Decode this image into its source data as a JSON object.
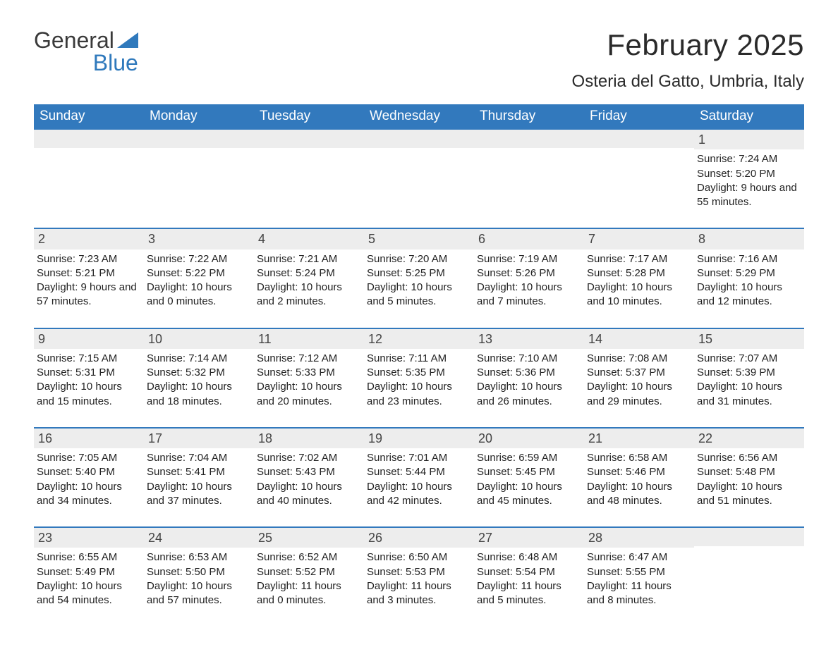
{
  "logo": {
    "word1": "General",
    "word2": "Blue"
  },
  "title": "February 2025",
  "location": "Osteria del Gatto, Umbria, Italy",
  "colors": {
    "header_bg": "#3279bd",
    "header_text": "#ffffff",
    "daynum_bg": "#ededed",
    "accent": "#2f79bc",
    "body_text": "#222222",
    "page_bg": "#ffffff"
  },
  "days_of_week": [
    "Sunday",
    "Monday",
    "Tuesday",
    "Wednesday",
    "Thursday",
    "Friday",
    "Saturday"
  ],
  "labels": {
    "sunrise": "Sunrise:",
    "sunset": "Sunset:",
    "daylight": "Daylight:"
  },
  "weeks": [
    [
      null,
      null,
      null,
      null,
      null,
      null,
      {
        "n": "1",
        "sunrise": "7:24 AM",
        "sunset": "5:20 PM",
        "daylight": "9 hours and 55 minutes."
      }
    ],
    [
      {
        "n": "2",
        "sunrise": "7:23 AM",
        "sunset": "5:21 PM",
        "daylight": "9 hours and 57 minutes."
      },
      {
        "n": "3",
        "sunrise": "7:22 AM",
        "sunset": "5:22 PM",
        "daylight": "10 hours and 0 minutes."
      },
      {
        "n": "4",
        "sunrise": "7:21 AM",
        "sunset": "5:24 PM",
        "daylight": "10 hours and 2 minutes."
      },
      {
        "n": "5",
        "sunrise": "7:20 AM",
        "sunset": "5:25 PM",
        "daylight": "10 hours and 5 minutes."
      },
      {
        "n": "6",
        "sunrise": "7:19 AM",
        "sunset": "5:26 PM",
        "daylight": "10 hours and 7 minutes."
      },
      {
        "n": "7",
        "sunrise": "7:17 AM",
        "sunset": "5:28 PM",
        "daylight": "10 hours and 10 minutes."
      },
      {
        "n": "8",
        "sunrise": "7:16 AM",
        "sunset": "5:29 PM",
        "daylight": "10 hours and 12 minutes."
      }
    ],
    [
      {
        "n": "9",
        "sunrise": "7:15 AM",
        "sunset": "5:31 PM",
        "daylight": "10 hours and 15 minutes."
      },
      {
        "n": "10",
        "sunrise": "7:14 AM",
        "sunset": "5:32 PM",
        "daylight": "10 hours and 18 minutes."
      },
      {
        "n": "11",
        "sunrise": "7:12 AM",
        "sunset": "5:33 PM",
        "daylight": "10 hours and 20 minutes."
      },
      {
        "n": "12",
        "sunrise": "7:11 AM",
        "sunset": "5:35 PM",
        "daylight": "10 hours and 23 minutes."
      },
      {
        "n": "13",
        "sunrise": "7:10 AM",
        "sunset": "5:36 PM",
        "daylight": "10 hours and 26 minutes."
      },
      {
        "n": "14",
        "sunrise": "7:08 AM",
        "sunset": "5:37 PM",
        "daylight": "10 hours and 29 minutes."
      },
      {
        "n": "15",
        "sunrise": "7:07 AM",
        "sunset": "5:39 PM",
        "daylight": "10 hours and 31 minutes."
      }
    ],
    [
      {
        "n": "16",
        "sunrise": "7:05 AM",
        "sunset": "5:40 PM",
        "daylight": "10 hours and 34 minutes."
      },
      {
        "n": "17",
        "sunrise": "7:04 AM",
        "sunset": "5:41 PM",
        "daylight": "10 hours and 37 minutes."
      },
      {
        "n": "18",
        "sunrise": "7:02 AM",
        "sunset": "5:43 PM",
        "daylight": "10 hours and 40 minutes."
      },
      {
        "n": "19",
        "sunrise": "7:01 AM",
        "sunset": "5:44 PM",
        "daylight": "10 hours and 42 minutes."
      },
      {
        "n": "20",
        "sunrise": "6:59 AM",
        "sunset": "5:45 PM",
        "daylight": "10 hours and 45 minutes."
      },
      {
        "n": "21",
        "sunrise": "6:58 AM",
        "sunset": "5:46 PM",
        "daylight": "10 hours and 48 minutes."
      },
      {
        "n": "22",
        "sunrise": "6:56 AM",
        "sunset": "5:48 PM",
        "daylight": "10 hours and 51 minutes."
      }
    ],
    [
      {
        "n": "23",
        "sunrise": "6:55 AM",
        "sunset": "5:49 PM",
        "daylight": "10 hours and 54 minutes."
      },
      {
        "n": "24",
        "sunrise": "6:53 AM",
        "sunset": "5:50 PM",
        "daylight": "10 hours and 57 minutes."
      },
      {
        "n": "25",
        "sunrise": "6:52 AM",
        "sunset": "5:52 PM",
        "daylight": "11 hours and 0 minutes."
      },
      {
        "n": "26",
        "sunrise": "6:50 AM",
        "sunset": "5:53 PM",
        "daylight": "11 hours and 3 minutes."
      },
      {
        "n": "27",
        "sunrise": "6:48 AM",
        "sunset": "5:54 PM",
        "daylight": "11 hours and 5 minutes."
      },
      {
        "n": "28",
        "sunrise": "6:47 AM",
        "sunset": "5:55 PM",
        "daylight": "11 hours and 8 minutes."
      },
      null
    ]
  ]
}
